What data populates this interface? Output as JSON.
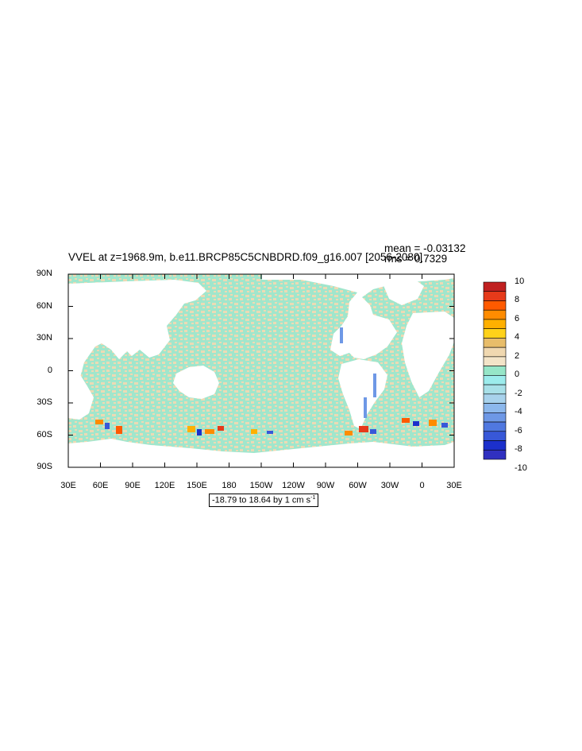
{
  "title": "VVEL at z=1968.9m, b.e11.BRCP85C5CNBDRD.f09_g16.007 [2056-2080]",
  "stats": {
    "mean": "mean = -0.03132",
    "rms": "rms = 0.7329"
  },
  "map": {
    "y_ticks": [
      "90N",
      "60N",
      "30N",
      "0",
      "30S",
      "60S",
      "90S"
    ],
    "x_ticks": [
      "30E",
      "60E",
      "90E",
      "120E",
      "150E",
      "180",
      "150W",
      "120W",
      "90W",
      "60W",
      "30W",
      "0",
      "30E"
    ],
    "range_text": "-18.79 to 18.64 by 1 cm s",
    "range_sup": "-1"
  },
  "colorbar": {
    "labels": [
      "10",
      "8",
      "6",
      "4",
      "2",
      "0",
      "-2",
      "-4",
      "-6",
      "-8",
      "-10"
    ],
    "colors": [
      "#c02020",
      "#e63a1a",
      "#ff5a00",
      "#ff8c00",
      "#ffb000",
      "#ffd21a",
      "#e8bd6a",
      "#f0d8b0",
      "#f3e4c8",
      "#96e6c8",
      "#9cecec",
      "#a8e0e8",
      "#a8d2ec",
      "#8cb8ec",
      "#6e98e6",
      "#5078e0",
      "#3858d8",
      "#1c30cc",
      "#3030c0"
    ]
  },
  "colors": {
    "ocean_pos": "#ecdab4",
    "ocean_neg": "#a0e6cc",
    "land": "#ffffff"
  }
}
